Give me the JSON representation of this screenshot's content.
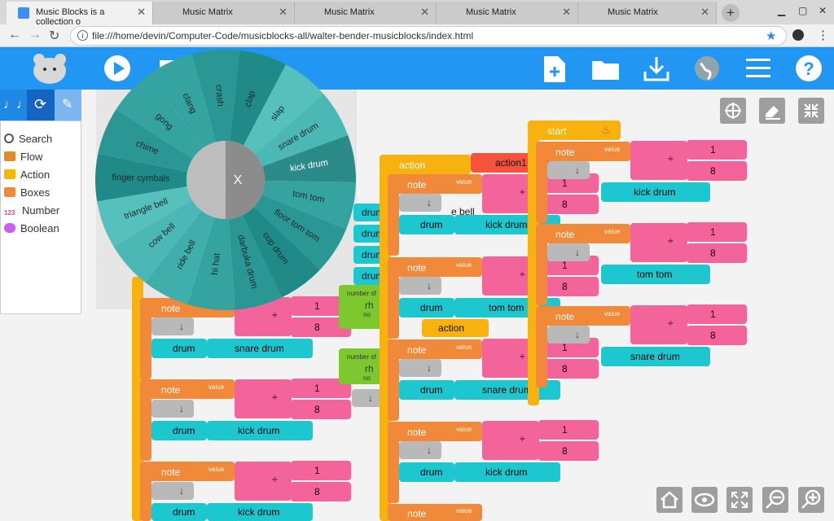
{
  "browser": {
    "tabs": [
      {
        "title": "Music Blocks is a collection o"
      },
      {
        "title": "Music Matrix"
      },
      {
        "title": "Music Matrix"
      },
      {
        "title": "Music Matrix"
      },
      {
        "title": "Music Matrix"
      }
    ],
    "new_tab_label": "+",
    "url": "file:///home/devin/Computer-Code/musicblocks-all/walter-bender-musicblocks/index.html"
  },
  "palette": {
    "items": [
      {
        "label": "Search",
        "color": "#555555"
      },
      {
        "label": "Flow",
        "color": "#e08a2e"
      },
      {
        "label": "Action",
        "color": "#f5b800"
      },
      {
        "label": "Boxes",
        "color": "#f08a3a"
      },
      {
        "label": "Number",
        "color": "#e4497b"
      },
      {
        "label": "Boolean",
        "color": "#c95ef0"
      }
    ],
    "number_icon_text": "123"
  },
  "pie_menu": {
    "center_label": "X",
    "items": [
      "clang",
      "crash",
      "clap",
      "slap",
      "snare drum",
      "kick drum",
      "tom tom",
      "floor tom tom",
      "cup drum",
      "darbuka drum",
      "hi hat",
      "ride bell",
      "cow bell",
      "triangle bell",
      "finger cymbals",
      "chime",
      "gong"
    ],
    "selected": "kick drum"
  },
  "blocks": {
    "note": "note",
    "value": "value",
    "drum": "drum",
    "start": "start",
    "action": "action",
    "action1": "action1",
    "one": "1",
    "eight": "8",
    "div": "÷",
    "down": "↓",
    "rhythm": "rh",
    "number_of": "number of",
    "note_value_short": "no",
    "bell": "e bell",
    "drums": {
      "col1": [
        "snare drum",
        "kick drum",
        "kick drum"
      ],
      "col2": [
        "kick drum",
        "tom tom",
        "snare drum",
        "kick drum"
      ],
      "col3": [
        "kick drum",
        "tom tom",
        "snare drum"
      ]
    }
  },
  "colors": {
    "toolbar": "#2196f3",
    "flow": "#f7b20f",
    "note": "#f08a3a",
    "drum": "#1cc7cf",
    "pink": "#f2649a"
  }
}
